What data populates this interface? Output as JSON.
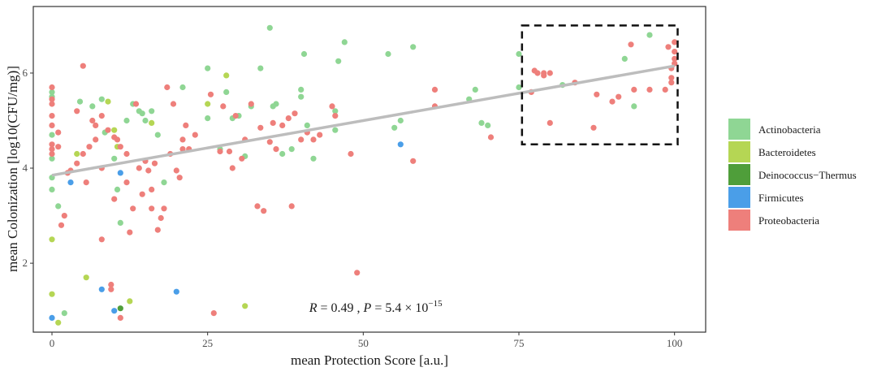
{
  "chart_data": {
    "type": "scatter",
    "xlabel": "mean Protection Score [a.u.]",
    "ylabel": "mean Colonization [log10(CFU/mg)]",
    "xlim": [
      -3,
      105
    ],
    "ylim": [
      0.55,
      7.4
    ],
    "xticks": [
      0,
      25,
      50,
      75,
      100
    ],
    "yticks": [
      2,
      4,
      6
    ],
    "grid": false,
    "legend_position": "right",
    "colors": {
      "Actinobacteria": "#8fd694",
      "Bacteroidetes": "#b5d654",
      "Deinococcus-Thermus": "#4f9e3a",
      "Firmicutes": "#4a9ee8",
      "Proteobacteria": "#ee7f7b"
    },
    "legend": [
      "Actinobacteria",
      "Bacteroidetes",
      "Deinococcus−Thermus",
      "Firmicutes",
      "Proteobacteria"
    ],
    "legend_keys": [
      "Actinobacteria",
      "Bacteroidetes",
      "Deinococcus-Thermus",
      "Firmicutes",
      "Proteobacteria"
    ],
    "regression": {
      "x": [
        0,
        100
      ],
      "y": [
        3.85,
        6.15
      ],
      "color": "#bdbdbd"
    },
    "highlight_box": {
      "x": [
        75.5,
        100.5
      ],
      "y": [
        4.5,
        7.0
      ]
    },
    "annotation": {
      "x": 52,
      "y": 0.98
    },
    "stats": {
      "r_label": "R",
      "r_text": " = 0.49 , ",
      "p_label": "P",
      "p_text": " = 5.4 × 10",
      "p_exp": "−15"
    },
    "series": [
      {
        "name": "Actinobacteria",
        "points": [
          [
            0,
            5.6
          ],
          [
            0,
            5.5
          ],
          [
            0,
            4.7
          ],
          [
            0,
            4.2
          ],
          [
            0,
            3.8
          ],
          [
            0,
            3.55
          ],
          [
            1,
            3.2
          ],
          [
            2,
            0.95
          ],
          [
            4.5,
            5.4
          ],
          [
            6.5,
            5.3
          ],
          [
            8,
            5.45
          ],
          [
            8.5,
            4.75
          ],
          [
            10,
            4.2
          ],
          [
            10.5,
            3.55
          ],
          [
            11,
            2.85
          ],
          [
            12,
            5.0
          ],
          [
            13,
            5.35
          ],
          [
            14,
            5.2
          ],
          [
            14.5,
            5.15
          ],
          [
            15,
            5.0
          ],
          [
            16,
            5.2
          ],
          [
            17,
            4.7
          ],
          [
            18,
            3.7
          ],
          [
            21,
            5.7
          ],
          [
            25,
            6.1
          ],
          [
            25,
            5.05
          ],
          [
            27,
            4.4
          ],
          [
            28,
            5.6
          ],
          [
            29,
            5.05
          ],
          [
            30,
            5.1
          ],
          [
            31,
            4.25
          ],
          [
            32,
            5.3
          ],
          [
            33.5,
            6.1
          ],
          [
            35,
            6.95
          ],
          [
            35.5,
            5.3
          ],
          [
            36,
            5.35
          ],
          [
            37,
            4.3
          ],
          [
            38.5,
            4.4
          ],
          [
            40,
            5.65
          ],
          [
            40,
            5.5
          ],
          [
            40.5,
            6.4
          ],
          [
            41,
            4.9
          ],
          [
            42,
            4.2
          ],
          [
            45.5,
            4.8
          ],
          [
            45.5,
            5.2
          ],
          [
            46,
            6.25
          ],
          [
            47,
            6.65
          ],
          [
            54,
            6.4
          ],
          [
            55,
            4.85
          ],
          [
            56,
            5.0
          ],
          [
            58,
            6.55
          ],
          [
            67,
            5.45
          ],
          [
            68,
            5.65
          ],
          [
            69,
            4.95
          ],
          [
            70,
            4.9
          ],
          [
            75,
            5.7
          ],
          [
            75,
            6.4
          ],
          [
            82,
            5.75
          ],
          [
            92,
            6.3
          ],
          [
            93.5,
            5.3
          ],
          [
            96,
            6.8
          ]
        ]
      },
      {
        "name": "Bacteroidetes",
        "points": [
          [
            0,
            2.5
          ],
          [
            0,
            1.35
          ],
          [
            1,
            0.75
          ],
          [
            4,
            4.3
          ],
          [
            5.5,
            1.7
          ],
          [
            9,
            5.4
          ],
          [
            10,
            4.8
          ],
          [
            10.5,
            4.45
          ],
          [
            12.5,
            1.2
          ],
          [
            16,
            4.95
          ],
          [
            25,
            5.35
          ],
          [
            28,
            5.95
          ],
          [
            31,
            1.1
          ]
        ]
      },
      {
        "name": "Deinococcus-Thermus",
        "points": [
          [
            11,
            1.05
          ]
        ]
      },
      {
        "name": "Firmicutes",
        "points": [
          [
            0,
            0.85
          ],
          [
            3,
            3.7
          ],
          [
            8,
            1.45
          ],
          [
            10,
            1.0
          ],
          [
            11,
            3.9
          ],
          [
            20,
            1.4
          ],
          [
            56,
            4.5
          ]
        ]
      },
      {
        "name": "Proteobacteria",
        "points": [
          [
            0,
            5.7
          ],
          [
            0,
            5.45
          ],
          [
            0,
            5.35
          ],
          [
            0,
            5.1
          ],
          [
            0,
            4.9
          ],
          [
            0,
            4.5
          ],
          [
            0,
            4.4
          ],
          [
            0,
            4.3
          ],
          [
            1,
            4.75
          ],
          [
            1,
            4.45
          ],
          [
            1.5,
            2.8
          ],
          [
            2,
            3.0
          ],
          [
            2.5,
            3.9
          ],
          [
            3,
            3.95
          ],
          [
            4,
            4.1
          ],
          [
            4,
            5.2
          ],
          [
            5,
            4.3
          ],
          [
            5,
            6.15
          ],
          [
            5.5,
            3.7
          ],
          [
            6,
            4.45
          ],
          [
            6.5,
            5.0
          ],
          [
            7,
            4.9
          ],
          [
            7,
            4.6
          ],
          [
            8,
            4.0
          ],
          [
            8,
            5.1
          ],
          [
            8,
            2.5
          ],
          [
            9,
            4.8
          ],
          [
            9.5,
            1.45
          ],
          [
            9.5,
            1.55
          ],
          [
            10,
            4.65
          ],
          [
            10,
            3.35
          ],
          [
            10.5,
            4.6
          ],
          [
            11,
            4.45
          ],
          [
            11,
            0.85
          ],
          [
            12,
            4.3
          ],
          [
            12,
            3.7
          ],
          [
            12.5,
            2.65
          ],
          [
            13,
            3.15
          ],
          [
            13.5,
            5.35
          ],
          [
            14,
            4.0
          ],
          [
            14.5,
            3.45
          ],
          [
            15,
            4.15
          ],
          [
            15.5,
            3.95
          ],
          [
            16,
            3.55
          ],
          [
            16,
            3.15
          ],
          [
            16.5,
            4.1
          ],
          [
            17,
            2.7
          ],
          [
            17.5,
            2.95
          ],
          [
            18,
            3.15
          ],
          [
            18.5,
            5.7
          ],
          [
            19,
            4.3
          ],
          [
            19.5,
            5.35
          ],
          [
            20,
            3.95
          ],
          [
            20.5,
            3.8
          ],
          [
            21,
            4.6
          ],
          [
            21,
            4.4
          ],
          [
            21.5,
            4.9
          ],
          [
            22,
            4.4
          ],
          [
            23,
            4.7
          ],
          [
            25.5,
            5.55
          ],
          [
            26,
            0.95
          ],
          [
            27,
            4.35
          ],
          [
            27.5,
            5.3
          ],
          [
            28.5,
            4.35
          ],
          [
            29,
            4.0
          ],
          [
            29.5,
            5.1
          ],
          [
            30.5,
            4.2
          ],
          [
            31,
            4.6
          ],
          [
            32,
            5.35
          ],
          [
            33,
            3.2
          ],
          [
            33.5,
            4.85
          ],
          [
            34,
            3.1
          ],
          [
            35,
            4.55
          ],
          [
            35.5,
            4.95
          ],
          [
            36,
            4.4
          ],
          [
            37,
            4.9
          ],
          [
            38,
            5.05
          ],
          [
            38.5,
            3.2
          ],
          [
            39,
            5.15
          ],
          [
            40,
            4.6
          ],
          [
            41,
            4.75
          ],
          [
            42,
            4.6
          ],
          [
            43,
            4.7
          ],
          [
            45,
            5.3
          ],
          [
            45.5,
            5.1
          ],
          [
            48,
            4.3
          ],
          [
            49,
            1.8
          ],
          [
            58,
            4.15
          ],
          [
            61.5,
            5.65
          ],
          [
            61.5,
            5.3
          ],
          [
            70.5,
            4.65
          ],
          [
            77,
            5.6
          ],
          [
            77.5,
            6.05
          ],
          [
            78,
            6.0
          ],
          [
            79,
            6.0
          ],
          [
            79,
            5.95
          ],
          [
            80,
            6.0
          ],
          [
            80,
            4.95
          ],
          [
            84,
            5.8
          ],
          [
            87,
            4.85
          ],
          [
            87.5,
            5.55
          ],
          [
            90,
            5.4
          ],
          [
            91,
            5.5
          ],
          [
            93,
            6.6
          ],
          [
            93.5,
            5.65
          ],
          [
            96,
            5.65
          ],
          [
            98.5,
            5.65
          ],
          [
            99,
            6.55
          ],
          [
            99.5,
            6.1
          ],
          [
            99.5,
            5.9
          ],
          [
            99.5,
            5.8
          ],
          [
            100,
            6.65
          ],
          [
            100,
            6.45
          ],
          [
            100,
            6.3
          ],
          [
            100,
            6.2
          ]
        ]
      }
    ]
  }
}
